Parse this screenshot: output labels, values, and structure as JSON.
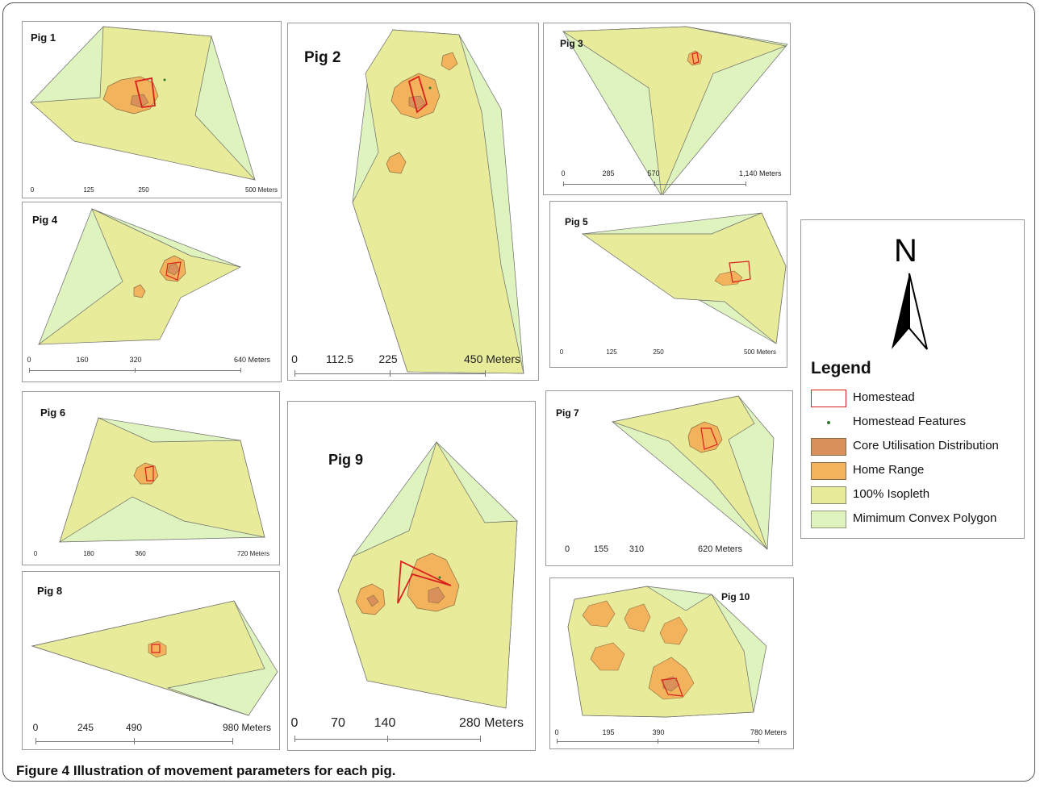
{
  "figure": {
    "caption_label": "Figure 4",
    "caption_text": " Illustration of movement parameters for each pig."
  },
  "colors": {
    "mcp": "#dff3bf",
    "isopleth": "#e8ec9a",
    "home_range": "#f2b35c",
    "core": "#d9905a",
    "homestead": "#d8201f",
    "features": "#2f7a2f",
    "outline": "#6a6a6a"
  },
  "panels": [
    {
      "title": "Pig 1",
      "scale": [
        "0",
        "125",
        "250",
        "500 Meters"
      ]
    },
    {
      "title": "Pig 2",
      "scale": [
        "0",
        "112.5",
        "225",
        "450 Meters"
      ]
    },
    {
      "title": "Pig 3",
      "scale": [
        "0",
        "285",
        "570",
        "1,140 Meters"
      ]
    },
    {
      "title": "Pig 4",
      "scale": [
        "0",
        "160",
        "320",
        "640 Meters"
      ]
    },
    {
      "title": "Pig 5",
      "scale": [
        "0",
        "125",
        "250",
        "500 Meters"
      ]
    },
    {
      "title": "Pig 6",
      "scale": [
        "0",
        "180",
        "360",
        "720 Meters"
      ]
    },
    {
      "title": "Pig 7",
      "scale": [
        "0",
        "155",
        "310",
        "620 Meters"
      ]
    },
    {
      "title": "Pig 8",
      "scale": [
        "0",
        "245",
        "490",
        "980 Meters"
      ]
    },
    {
      "title": "Pig 9",
      "scale": [
        "0",
        "70",
        "140",
        "280 Meters"
      ]
    },
    {
      "title": "Pig 10",
      "scale": [
        "0",
        "195",
        "390",
        "780 Meters"
      ]
    }
  ],
  "legend": {
    "north_letter": "N",
    "title": "Legend",
    "north_arrow_icon": "north-arrow-icon",
    "items": [
      {
        "label": "Homestead",
        "symbol": "homestead-outline-icon"
      },
      {
        "label": "Homestead Features",
        "symbol": "feature-dot-icon"
      },
      {
        "label": "Core Utilisation Distribution",
        "symbol": "core-swatch"
      },
      {
        "label": "Home Range",
        "symbol": "home-range-swatch"
      },
      {
        "label": "100% Isopleth",
        "symbol": "isopleth-swatch"
      },
      {
        "label": "Mimimum Convex Polygon",
        "symbol": "mcp-swatch"
      }
    ]
  }
}
